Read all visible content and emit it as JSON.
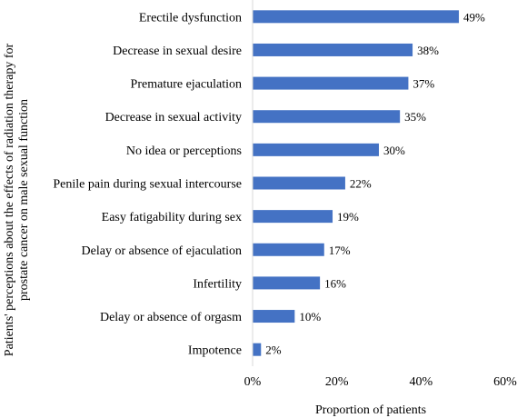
{
  "chart_data": {
    "type": "bar",
    "orientation": "horizontal",
    "categories": [
      "Erectile dysfunction",
      "Decrease in sexual desire",
      "Premature ejaculation",
      "Decrease in sexual activity",
      "No idea or perceptions",
      "Penile pain during sexual intercourse",
      "Easy fatigability during sex",
      "Delay or absence of ejaculation",
      "Infertility",
      "Delay or absence of orgasm",
      "Impotence"
    ],
    "values": [
      49,
      38,
      37,
      35,
      30,
      22,
      19,
      17,
      16,
      10,
      2
    ],
    "value_labels": [
      "49%",
      "38%",
      "37%",
      "35%",
      "30%",
      "22%",
      "19%",
      "17%",
      "16%",
      "10%",
      "2%"
    ],
    "xlim": [
      0,
      60
    ],
    "xticks": [
      0,
      20,
      40,
      60
    ],
    "xtick_labels": [
      "0%",
      "20%",
      "40%",
      "60%"
    ],
    "xlabel": "Proportion of patients",
    "ylabel_line1": "Patients' perceptions about the effects of radiation therapy for",
    "ylabel_line2": "prostate cancer on male sexual function",
    "grid": false,
    "legend": "none",
    "bar_color": "#4472c4"
  }
}
